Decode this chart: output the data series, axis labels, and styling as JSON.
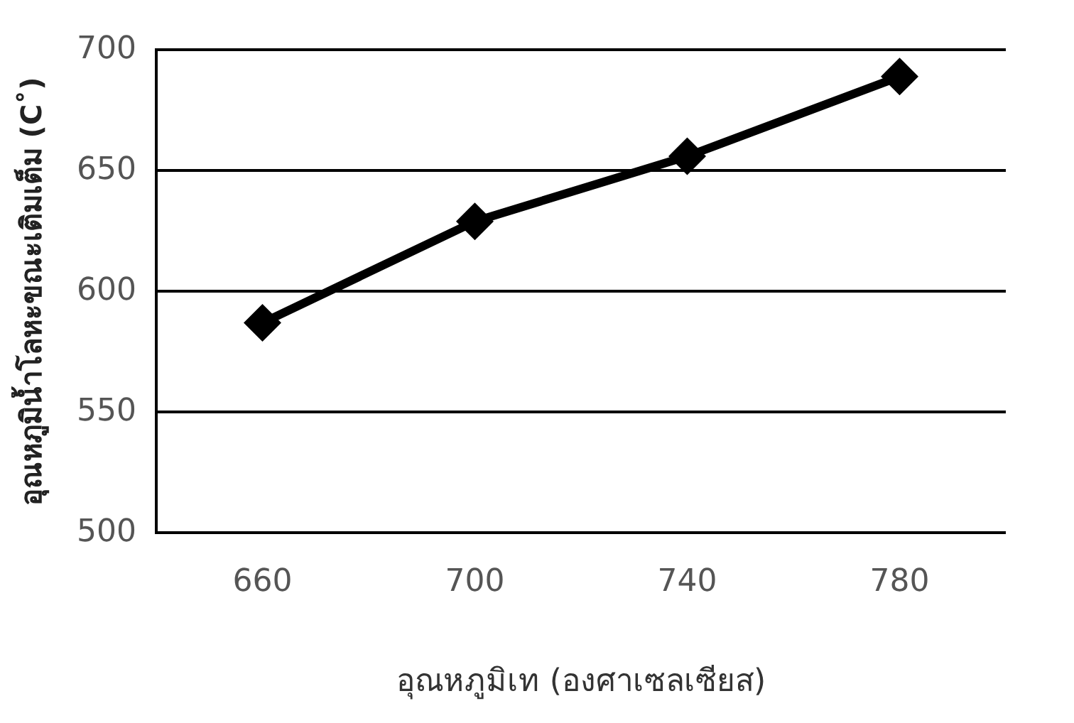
{
  "chart_data": {
    "type": "line",
    "xlabel": "อุณหภูมิเท (องศาเซลเซียส)",
    "ylabel": "อุณหภูมิน้ำโลหะขณะเติมเต็ม (C˚)",
    "categories": [
      "660",
      "700",
      "740",
      "780"
    ],
    "series": [
      {
        "color": "#000000",
        "values": [
          587,
          629,
          656,
          689
        ]
      }
    ],
    "ylim": [
      500,
      700
    ],
    "yticks": [
      500,
      550,
      600,
      650,
      700
    ],
    "grid": "y",
    "legend": false,
    "marker": "diamond",
    "line_style": "solid"
  }
}
